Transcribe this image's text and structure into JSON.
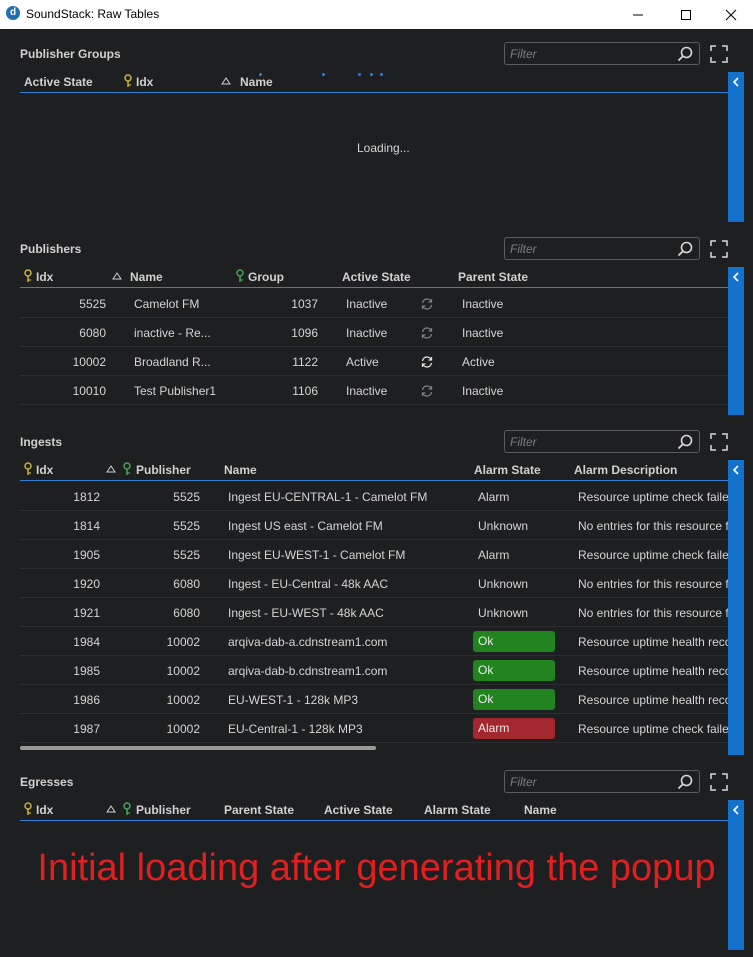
{
  "window": {
    "title": "SoundStack: Raw Tables",
    "app_icon": "d"
  },
  "filter_placeholder": "Filter",
  "publisher_groups": {
    "title": "Publisher Groups",
    "columns": [
      "Active State",
      "Idx",
      "Name"
    ],
    "loading_text": "Loading..."
  },
  "publishers": {
    "title": "Publishers",
    "columns": [
      "Idx",
      "Name",
      "Group",
      "Active State",
      "Parent State"
    ],
    "rows": [
      {
        "idx": "5525",
        "name": "Camelot FM",
        "group": "1037",
        "active_state": "Inactive",
        "parent_state": "Inactive"
      },
      {
        "idx": "6080",
        "name": "inactive - Re...",
        "group": "1096",
        "active_state": "Inactive",
        "parent_state": "Inactive"
      },
      {
        "idx": "10002",
        "name": "Broadland R...",
        "group": "1122",
        "active_state": "Active",
        "parent_state": "Active"
      },
      {
        "idx": "10010",
        "name": "Test Publisher1",
        "group": "1106",
        "active_state": "Inactive",
        "parent_state": "Inactive"
      }
    ]
  },
  "ingests": {
    "title": "Ingests",
    "columns": [
      "Idx",
      "Publisher",
      "Name",
      "Alarm State",
      "Alarm Description"
    ],
    "rows": [
      {
        "idx": "1812",
        "publisher": "5525",
        "name": "Ingest EU-CENTRAL-1 - Camelot FM",
        "alarm_state": "Alarm",
        "pill": "",
        "description": "Resource uptime check failed"
      },
      {
        "idx": "1814",
        "publisher": "5525",
        "name": "Ingest US east - Camelot FM",
        "alarm_state": "Unknown",
        "pill": "",
        "description": "No entries for this resource found"
      },
      {
        "idx": "1905",
        "publisher": "5525",
        "name": "Ingest EU-WEST-1 - Camelot FM",
        "alarm_state": "Alarm",
        "pill": "",
        "description": "Resource uptime check failed"
      },
      {
        "idx": "1920",
        "publisher": "6080",
        "name": "Ingest - EU-Central - 48k AAC",
        "alarm_state": "Unknown",
        "pill": "",
        "description": "No entries for this resource found"
      },
      {
        "idx": "1921",
        "publisher": "6080",
        "name": "Ingest - EU-WEST - 48k AAC",
        "alarm_state": "Unknown",
        "pill": "",
        "description": "No entries for this resource found"
      },
      {
        "idx": "1984",
        "publisher": "10002",
        "name": "arqiva-dab-a.cdnstream1.com",
        "alarm_state": "Ok",
        "pill": "ok",
        "description": "Resource uptime health record"
      },
      {
        "idx": "1985",
        "publisher": "10002",
        "name": "arqiva-dab-b.cdnstream1.com",
        "alarm_state": "Ok",
        "pill": "ok",
        "description": "Resource uptime health record"
      },
      {
        "idx": "1986",
        "publisher": "10002",
        "name": "EU-WEST-1 - 128k MP3",
        "alarm_state": "Ok",
        "pill": "ok",
        "description": "Resource uptime health record"
      },
      {
        "idx": "1987",
        "publisher": "10002",
        "name": "EU-Central-1 - 128k MP3",
        "alarm_state": "Alarm",
        "pill": "alarm",
        "description": "Resource uptime check failed"
      }
    ]
  },
  "egresses": {
    "title": "Egresses",
    "columns": [
      "Idx",
      "Publisher",
      "Parent State",
      "Active State",
      "Alarm State",
      "Name"
    ]
  },
  "annotation": "Initial loading after generating the popup",
  "colors": {
    "background": "#1e1f21",
    "accent": "#1572cc",
    "ok": "#21841f",
    "alarm": "#a3282d",
    "annotation": "#e02020"
  }
}
